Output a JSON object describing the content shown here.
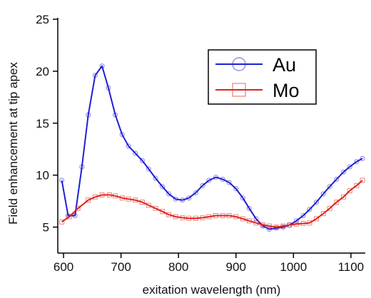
{
  "chart_data": {
    "type": "line",
    "title": "",
    "xlabel": "exitation wavelength (nm)",
    "ylabel": "Field enhancement at tip apex",
    "xlim": [
      590,
      1125
    ],
    "ylim": [
      2.5,
      25
    ],
    "xticks": [
      600,
      700,
      800,
      900,
      1000,
      1100
    ],
    "yticks": [
      5,
      10,
      15,
      20,
      25
    ],
    "grid": false,
    "legend_position": "top-right",
    "series": [
      {
        "name": "Au",
        "color": "#1f1fd6",
        "marker": "circle",
        "x": [
          597,
          608,
          620,
          632,
          643,
          655,
          667,
          678,
          690,
          702,
          713,
          725,
          737,
          748,
          760,
          772,
          783,
          795,
          807,
          818,
          830,
          842,
          853,
          865,
          877,
          888,
          900,
          912,
          923,
          935,
          947,
          958,
          970,
          982,
          993,
          1005,
          1017,
          1028,
          1040,
          1052,
          1063,
          1075,
          1087,
          1098,
          1110,
          1120
        ],
        "y": [
          9.5,
          6.1,
          6.1,
          10.8,
          15.8,
          19.6,
          20.5,
          18.4,
          15.8,
          13.9,
          12.8,
          12.1,
          11.4,
          10.6,
          9.7,
          8.9,
          8.2,
          7.7,
          7.6,
          7.8,
          8.3,
          9.0,
          9.5,
          9.8,
          9.6,
          9.3,
          8.7,
          7.8,
          6.8,
          5.8,
          5.1,
          4.8,
          4.9,
          5.0,
          5.2,
          5.6,
          6.1,
          6.7,
          7.4,
          8.2,
          8.9,
          9.6,
          10.3,
          10.8,
          11.3,
          11.6
        ]
      },
      {
        "name": "Mo",
        "color": "#e0231c",
        "marker": "square",
        "x": [
          597,
          610,
          625,
          643,
          655,
          667,
          680,
          690,
          702,
          713,
          725,
          737,
          748,
          760,
          772,
          783,
          795,
          807,
          818,
          830,
          842,
          853,
          865,
          877,
          888,
          900,
          912,
          923,
          935,
          947,
          958,
          970,
          982,
          993,
          1005,
          1017,
          1028,
          1040,
          1052,
          1063,
          1075,
          1087,
          1098,
          1110,
          1120
        ],
        "y": [
          5.5,
          6.0,
          6.8,
          7.6,
          7.9,
          8.1,
          8.1,
          8.0,
          7.8,
          7.7,
          7.6,
          7.4,
          7.1,
          6.8,
          6.5,
          6.2,
          6.0,
          5.9,
          5.85,
          5.85,
          5.9,
          6.0,
          6.1,
          6.1,
          6.1,
          6.0,
          5.8,
          5.6,
          5.4,
          5.2,
          5.1,
          5.0,
          5.1,
          5.2,
          5.3,
          5.35,
          5.4,
          5.8,
          6.3,
          6.8,
          7.4,
          7.9,
          8.5,
          9.0,
          9.5
        ]
      }
    ]
  }
}
